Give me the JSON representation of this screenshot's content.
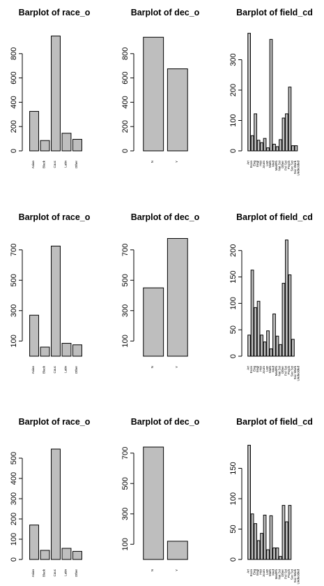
{
  "chart_data": [
    {
      "type": "bar",
      "title": "Barplot of race_o",
      "categories": [
        "Asian",
        "Black",
        "Cauc",
        "Latin",
        "Other"
      ],
      "values": [
        325,
        85,
        945,
        145,
        95
      ],
      "ylim": [
        0,
        1000
      ],
      "yticks": [
        0,
        200,
        400,
        600,
        800
      ]
    },
    {
      "type": "bar",
      "title": "Barplot of dec_o",
      "categories": [
        "N",
        "Y"
      ],
      "values": [
        935,
        675
      ],
      "ylim": [
        0,
        1000
      ],
      "yticks": [
        0,
        200,
        400,
        600,
        800
      ]
    },
    {
      "type": "bar",
      "title": "Barplot of field_cd",
      "categories": [
        "Art",
        "Econ",
        "Eng",
        "Engl",
        "Hist",
        "Journ",
        "Law",
        "Math",
        "Med",
        "MedPh",
        "Nat Sci",
        "Other",
        "Pol Sci",
        "Psych",
        "Soc Sci",
        "Soc Work",
        "Undecided"
      ],
      "values": [
        387,
        50,
        122,
        35,
        27,
        41,
        10,
        367,
        22,
        14,
        37,
        108,
        122,
        210,
        17,
        17,
        0
      ],
      "ylim": [
        0,
        400
      ],
      "yticks": [
        0,
        100,
        200,
        300
      ]
    },
    {
      "type": "bar",
      "title": "Barplot of race_o",
      "categories": [
        "Asian",
        "Black",
        "Cauc",
        "Latin",
        "Other"
      ],
      "values": [
        270,
        60,
        725,
        85,
        75
      ],
      "ylim": [
        0,
        800
      ],
      "yticks": [
        100,
        300,
        500,
        700
      ]
    },
    {
      "type": "bar",
      "title": "Barplot of dec_o",
      "categories": [
        "N",
        "Y"
      ],
      "values": [
        450,
        775
      ],
      "ylim": [
        0,
        800
      ],
      "yticks": [
        100,
        300,
        500,
        700
      ]
    },
    {
      "type": "bar",
      "title": "Barplot of field_cd",
      "categories": [
        "Art",
        "Econ",
        "Eng",
        "Engl",
        "Hist",
        "Journ",
        "Law",
        "Math",
        "Med",
        "MedPh",
        "Nat Sci",
        "Other",
        "Pol Sci",
        "Psych",
        "Soc Sci",
        "Soc Work",
        "Undecided"
      ],
      "values": [
        40,
        163,
        92,
        104,
        40,
        27,
        48,
        14,
        80,
        38,
        22,
        138,
        220,
        154,
        32,
        0,
        0
      ],
      "ylim": [
        0,
        230
      ],
      "yticks": [
        0,
        50,
        100,
        150,
        200
      ]
    },
    {
      "type": "bar",
      "title": "Barplot of race_o",
      "categories": [
        "Asian",
        "Black",
        "Cauc",
        "Latin",
        "Other"
      ],
      "values": [
        170,
        45,
        545,
        55,
        40
      ],
      "ylim": [
        0,
        600
      ],
      "yticks": [
        0,
        100,
        200,
        300,
        400,
        500
      ]
    },
    {
      "type": "bar",
      "title": "Barplot of dec_o",
      "categories": [
        "N",
        "Y"
      ],
      "values": [
        740,
        120
      ],
      "ylim": [
        0,
        800
      ],
      "yticks": [
        100,
        300,
        500,
        700
      ]
    },
    {
      "type": "bar",
      "title": "Barplot of field_cd",
      "categories": [
        "Art",
        "Econ",
        "Eng",
        "Engl",
        "Hist",
        "Journ",
        "Law",
        "Math",
        "Med",
        "MedPh",
        "Nat Sci",
        "Other",
        "Pol Sci",
        "Psych",
        "Soc Sci",
        "Soc Work",
        "Undecided"
      ],
      "values": [
        188,
        75,
        59,
        31,
        43,
        73,
        16,
        72,
        19,
        19,
        5,
        89,
        62,
        89,
        0,
        0,
        0
      ],
      "ylim": [
        0,
        200
      ],
      "yticks": [
        0,
        50,
        100,
        150
      ]
    }
  ]
}
